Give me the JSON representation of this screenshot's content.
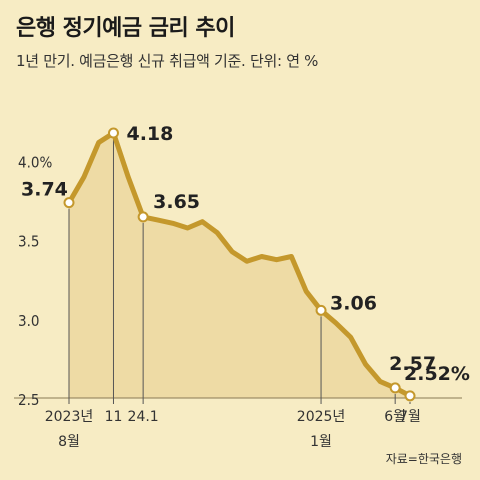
{
  "header": {
    "title": "은행 정기예금 금리 추이",
    "subtitle": "1년 만기. 예금은행 신규 취급액 기준. 단위: 연 %"
  },
  "source": "자료=한국은행",
  "colors": {
    "background": "#f7ecc4",
    "line": "#c4982c",
    "area": "#ecd9a2",
    "marker_fill": "#ffffff"
  },
  "chart_data": {
    "type": "area",
    "title": "은행 정기예금 금리 추이",
    "unit": "연 %",
    "ylim": [
      2.5,
      4.3
    ],
    "yticks": [
      {
        "value": 4.0,
        "label": "4.0%"
      },
      {
        "value": 3.5,
        "label": "3.5"
      },
      {
        "value": 3.0,
        "label": "3.0"
      },
      {
        "value": 2.5,
        "label": "2.5"
      }
    ],
    "xticks": [
      {
        "index": 0,
        "line1": "2023년",
        "line2": "8월"
      },
      {
        "index": 3,
        "line1": "11",
        "line2": ""
      },
      {
        "index": 5,
        "line1": "24.1",
        "line2": ""
      },
      {
        "index": 17,
        "line1": "2025년",
        "line2": "1월"
      },
      {
        "index": 22,
        "line1": "6월",
        "line2": ""
      },
      {
        "index": 23,
        "line1": "7월",
        "line2": ""
      }
    ],
    "series": [
      {
        "months": [
          "2023-08",
          "2023-09",
          "2023-10",
          "2023-11",
          "2023-12",
          "2024-01",
          "2024-02",
          "2024-03",
          "2024-04",
          "2024-05",
          "2024-06",
          "2024-07",
          "2024-08",
          "2024-09",
          "2024-10",
          "2024-11",
          "2024-12",
          "2025-01",
          "2025-02",
          "2025-03",
          "2025-04",
          "2025-05",
          "2025-06",
          "2025-07"
        ],
        "values": [
          3.74,
          3.9,
          4.12,
          4.18,
          3.9,
          3.65,
          3.63,
          3.61,
          3.58,
          3.62,
          3.55,
          3.43,
          3.37,
          3.4,
          3.38,
          3.4,
          3.18,
          3.06,
          2.98,
          2.89,
          2.72,
          2.61,
          2.57,
          2.52
        ]
      }
    ],
    "data_labels": [
      {
        "index": 0,
        "text": "3.74"
      },
      {
        "index": 3,
        "text": "4.18"
      },
      {
        "index": 5,
        "text": "3.65"
      },
      {
        "index": 17,
        "text": "3.06"
      },
      {
        "index": 22,
        "text": "2.57"
      },
      {
        "index": 23,
        "text": "2.52%"
      }
    ],
    "markers": [
      0,
      3,
      5,
      17,
      22,
      23
    ]
  }
}
